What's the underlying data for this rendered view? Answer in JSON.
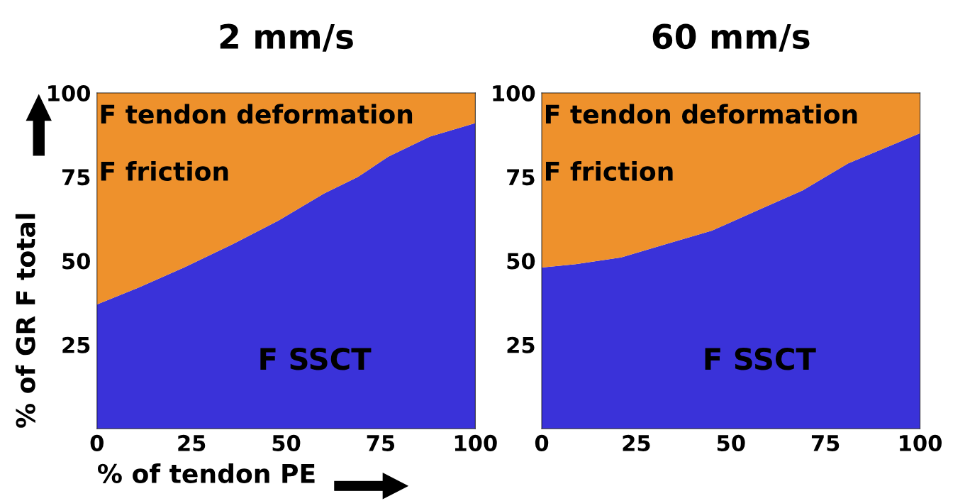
{
  "chart_data": [
    {
      "type": "area",
      "stacked": true,
      "title": "2 mm/s",
      "xlabel": "% of tendon PE",
      "ylabel": "% of GR F total",
      "x": [
        0,
        11,
        23,
        36,
        48,
        60,
        69,
        77,
        88,
        100
      ],
      "series": [
        {
          "color": "#3a32d9",
          "values": [
            37,
            42,
            48,
            55,
            62,
            70,
            75,
            81,
            87,
            91
          ]
        },
        {
          "color": "#ee912c",
          "values": [
            63,
            58,
            52,
            45,
            38,
            30,
            25,
            19,
            13,
            9
          ]
        }
      ],
      "xlim": [
        0,
        100
      ],
      "ylim": [
        0,
        100
      ],
      "xticks": [
        0,
        25,
        50,
        75,
        100
      ],
      "yticks": [
        25,
        50,
        75,
        100
      ],
      "annotations": [
        "F tendon deformation",
        "F friction",
        "F SSCT"
      ]
    },
    {
      "type": "area",
      "stacked": true,
      "title": "60 mm/s",
      "x": [
        0,
        9,
        21,
        33,
        45,
        57,
        69,
        81,
        100
      ],
      "series": [
        {
          "color": "#3a32d9",
          "values": [
            48,
            49,
            51,
            55,
            59,
            65,
            71,
            79,
            88
          ]
        },
        {
          "color": "#ee912c",
          "values": [
            52,
            51,
            49,
            45,
            41,
            35,
            29,
            21,
            12
          ]
        }
      ],
      "xlim": [
        0,
        100
      ],
      "ylim": [
        0,
        100
      ],
      "xticks": [
        0,
        25,
        50,
        75,
        100
      ],
      "yticks": [
        25,
        50,
        75,
        100
      ],
      "annotations": [
        "F tendon deformation",
        "F friction",
        "F SSCT"
      ]
    }
  ]
}
